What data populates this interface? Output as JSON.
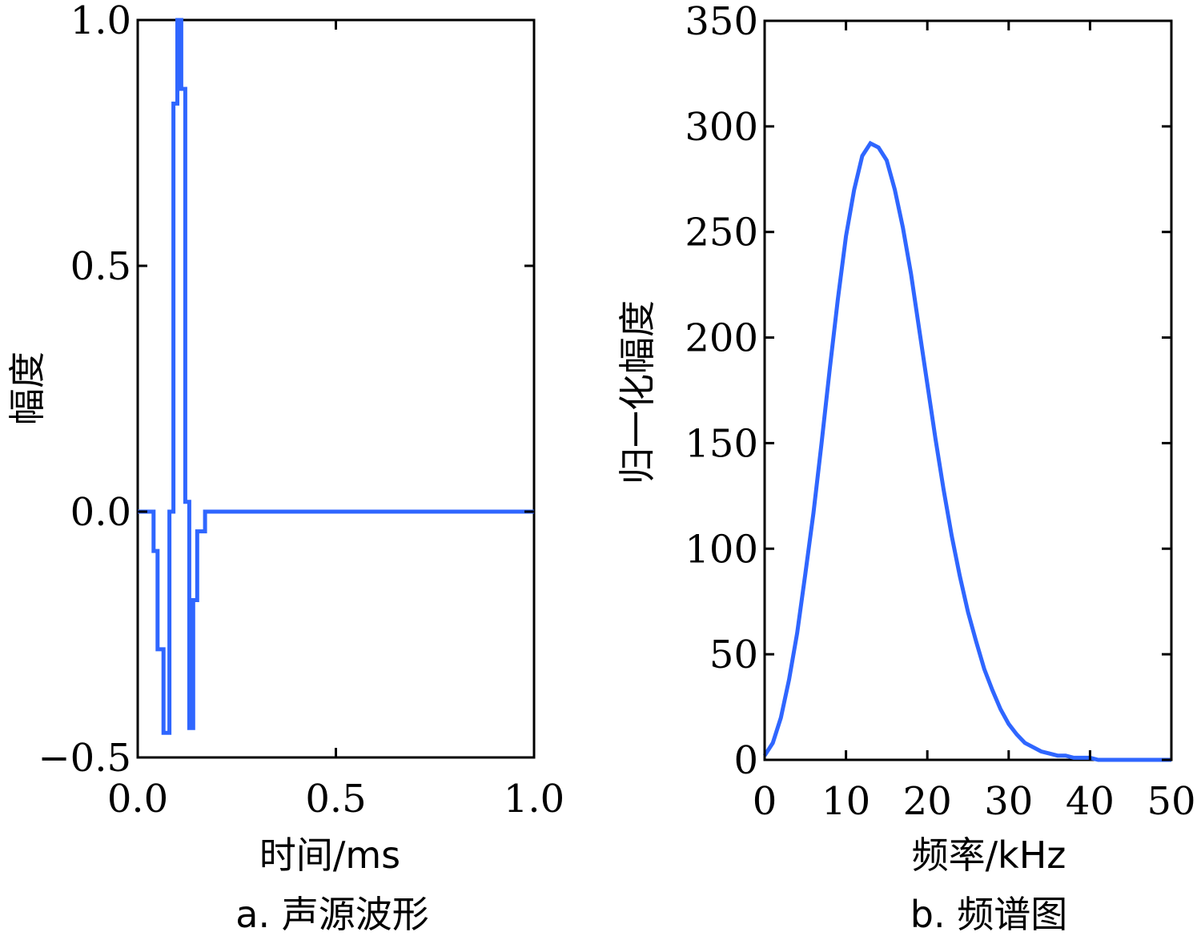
{
  "chart_data": [
    {
      "type": "line",
      "ylabel": "幅度",
      "xlabel": "时间/ms",
      "caption": "a. 声源波形",
      "xlim": [
        0.0,
        1.0
      ],
      "ylim": [
        -0.5,
        1.0
      ],
      "xticks": [
        "0.0",
        "0.5",
        "1.0"
      ],
      "yticks": [
        "−0.5",
        "0.0",
        "0.5",
        "1.0"
      ],
      "xtick_values": [
        0.0,
        0.5,
        1.0
      ],
      "ytick_values": [
        -0.5,
        0.0,
        0.5,
        1.0
      ],
      "color": "#2f66ff",
      "series": [
        {
          "x": [
            0.0,
            0.04,
            0.04,
            0.05,
            0.05,
            0.065,
            0.065,
            0.08,
            0.08,
            0.09,
            0.09,
            0.1,
            0.1,
            0.11,
            0.11,
            0.12,
            0.12,
            0.13,
            0.13,
            0.14,
            0.14,
            0.15,
            0.15,
            0.17,
            0.17,
            1.0
          ],
          "y": [
            0.0,
            0.0,
            -0.08,
            -0.08,
            -0.28,
            -0.28,
            -0.45,
            -0.45,
            0.0,
            0.0,
            0.83,
            0.83,
            1.0,
            1.0,
            0.86,
            0.86,
            0.02,
            0.02,
            -0.44,
            -0.44,
            -0.18,
            -0.18,
            -0.04,
            -0.04,
            0.0,
            0.0
          ]
        }
      ]
    },
    {
      "type": "line",
      "ylabel": "归一化幅度",
      "xlabel": "频率/kHz",
      "caption": "b. 频谱图",
      "xlim": [
        0,
        50
      ],
      "ylim": [
        0,
        350
      ],
      "xticks": [
        "0",
        "10",
        "20",
        "30",
        "40",
        "50"
      ],
      "yticks": [
        "0",
        "50",
        "100",
        "150",
        "200",
        "250",
        "300",
        "350"
      ],
      "xtick_values": [
        0,
        10,
        20,
        30,
        40,
        50
      ],
      "ytick_values": [
        0,
        50,
        100,
        150,
        200,
        250,
        300,
        350
      ],
      "color": "#2f66ff",
      "series": [
        {
          "x": [
            0,
            1,
            2,
            3,
            4,
            5,
            6,
            7,
            8,
            9,
            10,
            11,
            12,
            13,
            14,
            15,
            16,
            17,
            18,
            19,
            20,
            21,
            22,
            23,
            24,
            25,
            26,
            27,
            28,
            29,
            30,
            31,
            32,
            33,
            34,
            35,
            36,
            37,
            38,
            39,
            40,
            41,
            42,
            50
          ],
          "y": [
            2,
            8,
            20,
            38,
            60,
            88,
            117,
            150,
            185,
            218,
            248,
            270,
            286,
            292,
            290,
            284,
            270,
            252,
            230,
            204,
            178,
            152,
            128,
            106,
            87,
            70,
            56,
            43,
            33,
            24,
            17,
            12,
            8,
            6,
            4,
            3,
            2,
            2,
            1,
            1,
            1,
            0,
            0,
            0
          ]
        }
      ]
    }
  ]
}
